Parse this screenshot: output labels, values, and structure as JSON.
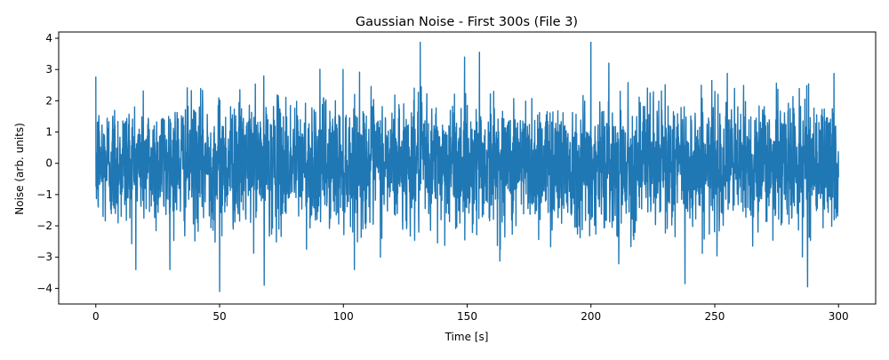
{
  "chart_data": {
    "type": "line",
    "title": "Gaussian Noise - First 300s (File 3)",
    "xlabel": "Time [s]",
    "ylabel": "Noise (arb. units)",
    "xlim": [
      -15,
      315
    ],
    "ylim": [
      -4.5,
      4.2
    ],
    "xticks": [
      0,
      50,
      100,
      150,
      200,
      250,
      300
    ],
    "yticks": [
      -4,
      -3,
      -2,
      -1,
      0,
      1,
      2,
      3,
      4
    ],
    "grid": false,
    "series": [
      {
        "color": "#1f77b4",
        "sampling": "dense Gaussian noise, 0 to 300 s, approx. mean 0, std 1",
        "x_range": [
          0,
          300
        ],
        "notable_peaks": [
          {
            "x": 131,
            "y": 3.87
          },
          {
            "x": 200,
            "y": 3.87
          },
          {
            "x": 155,
            "y": 3.55
          },
          {
            "x": 50,
            "y": -4.1
          },
          {
            "x": 287.5,
            "y": -3.95
          },
          {
            "x": 68,
            "y": -3.9
          },
          {
            "x": 238,
            "y": -3.85
          }
        ]
      }
    ]
  }
}
